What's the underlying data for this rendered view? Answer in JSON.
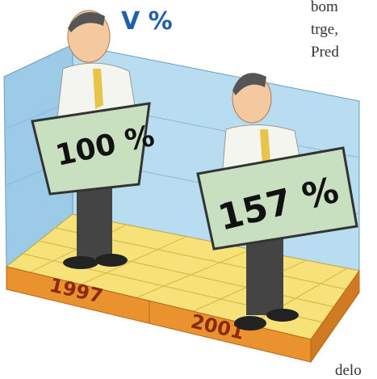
{
  "heading": "V %",
  "side_text": [
    "bom",
    "trge,",
    "Pred"
  ],
  "signs": [
    "100 %",
    "157 %"
  ],
  "years": [
    "1997",
    "2001"
  ],
  "footer": "delo"
}
